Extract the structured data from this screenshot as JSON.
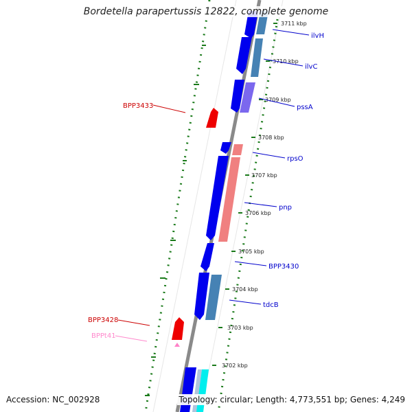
{
  "title": "Bordetella parapertussis 12822, complete genome",
  "footer": {
    "accession": "Accession: NC_002928",
    "summary": "Topology: circular; Length: 4,773,551 bp; Genes: 4,249"
  },
  "ticks": [
    "3711 kbp",
    "3710 kbp",
    "3709 kbp",
    "3708 kbp",
    "3707 kbp",
    "3706 kbp",
    "3705 kbp",
    "3704 kbp",
    "3703 kbp",
    "3702 kbp"
  ],
  "labels_right": [
    "ilvH",
    "ilvC",
    "pssA",
    "rpsO",
    "pnp",
    "BPP3430",
    "tdcB"
  ],
  "labels_left": [
    "BPP3433",
    "BPP3428",
    "BPPt41"
  ],
  "colors": {
    "cds_blue": "#0000ee",
    "cog_steel": "#4682b4",
    "cog_purple": "#7b68ee",
    "cog_salmon": "#f08080",
    "cog_light": "#b0c4de",
    "cog_cyan": "#00eeee",
    "reverse_red": "#ee0000",
    "trna_pink": "#ff82c8",
    "label_blue": "#0000cc",
    "label_red": "#cc0000",
    "label_pink": "#ff88cc",
    "gc_green": "#1a7a1a",
    "backbone": "#8a8a8a"
  }
}
